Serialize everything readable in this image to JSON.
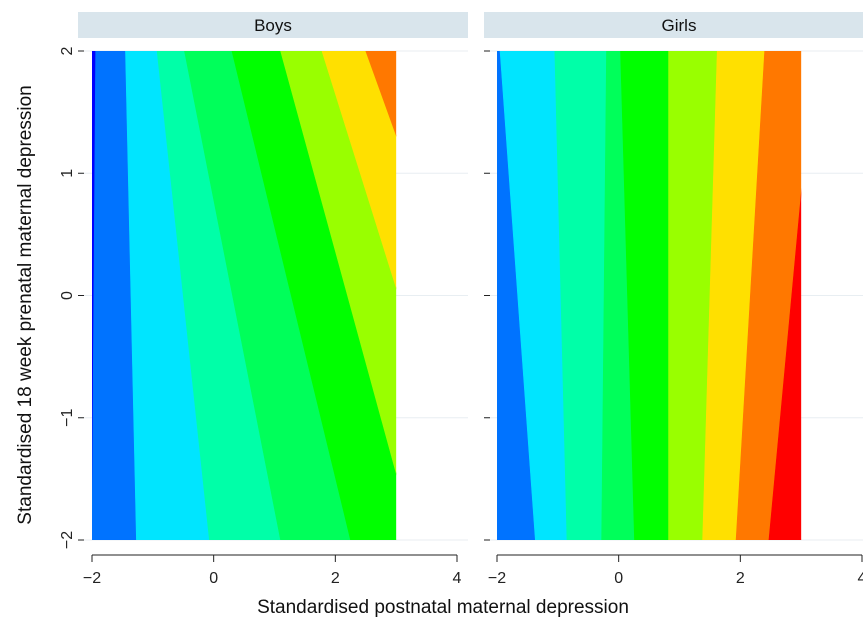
{
  "chart_data": {
    "type": "contour",
    "xlabel": "Standardised postnatal maternal depression",
    "ylabel": "Standardised 18 week prenatal maternal depression",
    "xlim": [
      -2,
      4
    ],
    "ylim": [
      -2,
      2
    ],
    "x_ticks": [
      -2,
      0,
      2,
      4
    ],
    "y_ticks": [
      -2,
      -1,
      0,
      1,
      2
    ],
    "grid": true,
    "legend": "none",
    "data_range": {
      "x": [
        -2,
        3
      ],
      "y": [
        -2,
        2
      ]
    },
    "colors": [
      "#0000ff",
      "#0073ff",
      "#00e5ff",
      "#00ffa8",
      "#00ff5a",
      "#00ff00",
      "#99ff00",
      "#ffe000",
      "#ff7800",
      "#ff0000"
    ],
    "panels": [
      {
        "title": "Boys",
        "boundaries": [
          {
            "x_at_ymin": -2.0,
            "x_at_ymax": -1.94
          },
          {
            "x_at_ymin": -1.27,
            "x_at_ymax": -1.45
          },
          {
            "x_at_ymin": -0.07,
            "x_at_ymax": -0.93
          },
          {
            "x_at_ymin": 1.1,
            "x_at_ymax": -0.48
          },
          {
            "x_at_ymin": 2.25,
            "x_at_ymax": 0.3
          },
          {
            "x_at_ymin": 3.3,
            "x_at_ymax": 1.1
          },
          {
            "x_at_ymin": 4.3,
            "x_at_ymax": 1.78
          },
          {
            "x_at_ymin": 5.4,
            "x_at_ymax": 2.5
          },
          {
            "x_at_ymin": 6.6,
            "x_at_ymax": 3.25
          }
        ]
      },
      {
        "title": "Girls",
        "boundaries": [
          {
            "x_at_ymin": -2.01,
            "x_at_ymax": -2.15
          },
          {
            "x_at_ymin": -1.37,
            "x_at_ymax": -1.95
          },
          {
            "x_at_ymin": -0.85,
            "x_at_ymax": -1.05
          },
          {
            "x_at_ymin": -0.28,
            "x_at_ymax": -0.2
          },
          {
            "x_at_ymin": 0.26,
            "x_at_ymax": 0.03
          },
          {
            "x_at_ymin": 0.82,
            "x_at_ymax": 0.82
          },
          {
            "x_at_ymin": 1.38,
            "x_at_ymax": 1.62
          },
          {
            "x_at_ymin": 1.93,
            "x_at_ymax": 2.4
          },
          {
            "x_at_ymin": 2.47,
            "x_at_ymax": 3.22
          }
        ]
      }
    ]
  }
}
